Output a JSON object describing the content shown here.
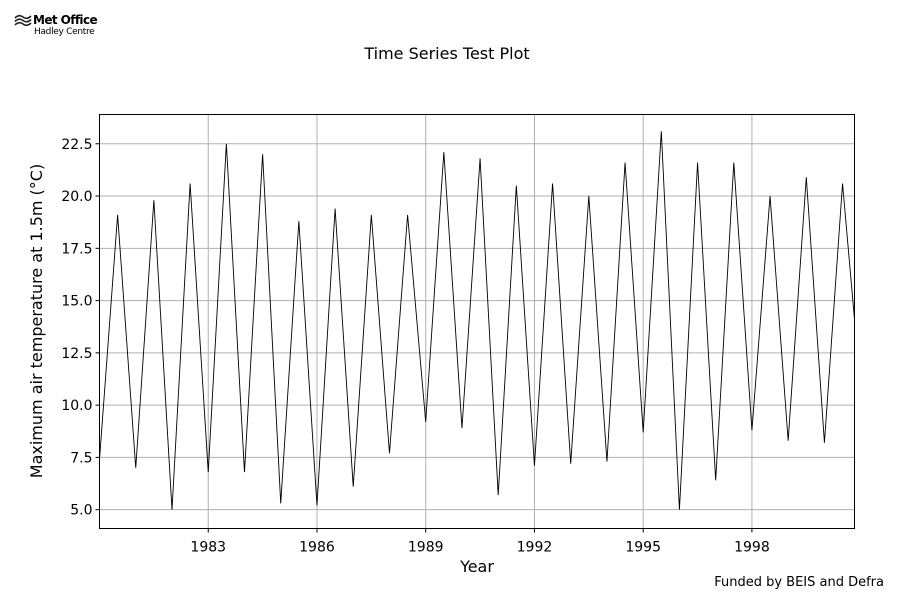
{
  "logo": {
    "brand": "Met Office",
    "sub": "Hadley Centre",
    "icon": "met-office-swirl-icon"
  },
  "footer": {
    "credit": "Funded by BEIS and Defra"
  },
  "chart_data": {
    "type": "line",
    "title": "Time Series Test Plot",
    "xlabel": "Year",
    "ylabel": "Maximum air temperature at 1.5m (°C)",
    "xlim": [
      1980,
      2000.83
    ],
    "ylim": [
      4.1,
      23.9
    ],
    "xticks": [
      1983,
      1986,
      1989,
      1992,
      1995,
      1998
    ],
    "xtick_labels": [
      "1983",
      "1986",
      "1989",
      "1992",
      "1995",
      "1998"
    ],
    "yticks": [
      5.0,
      7.5,
      10.0,
      12.5,
      15.0,
      17.5,
      20.0,
      22.5
    ],
    "ytick_labels": [
      "5.0",
      "7.5",
      "10.0",
      "12.5",
      "15.0",
      "17.5",
      "20.0",
      "22.5"
    ],
    "grid": true,
    "line_color": "#000000",
    "grid_color": "#b0b0b0",
    "series": [
      {
        "x": [
          1980.0,
          1980.5,
          1981.0,
          1981.5,
          1982.0,
          1982.5,
          1983.0,
          1983.5,
          1984.0,
          1984.5,
          1985.0,
          1985.5,
          1986.0,
          1986.5,
          1987.0,
          1987.5,
          1988.0,
          1988.5,
          1989.0,
          1989.5,
          1990.0,
          1990.5,
          1991.0,
          1991.5,
          1992.0,
          1992.5,
          1993.0,
          1993.5,
          1994.0,
          1994.5,
          1995.0,
          1995.5,
          1996.0,
          1996.5,
          1997.0,
          1997.5,
          1998.0,
          1998.5,
          1999.0,
          1999.5,
          2000.0,
          2000.5,
          2000.83
        ],
        "y": [
          7.4,
          19.1,
          7.0,
          19.8,
          5.0,
          20.6,
          6.8,
          22.5,
          6.8,
          22.0,
          5.3,
          18.8,
          5.2,
          19.4,
          6.1,
          19.1,
          7.7,
          19.1,
          9.2,
          22.1,
          8.9,
          21.8,
          5.7,
          20.5,
          7.1,
          20.6,
          7.2,
          20.0,
          7.3,
          21.6,
          8.7,
          23.1,
          5.0,
          21.6,
          6.4,
          21.6,
          8.8,
          20.0,
          8.3,
          20.9,
          8.2,
          20.6,
          14.1
        ]
      }
    ]
  }
}
